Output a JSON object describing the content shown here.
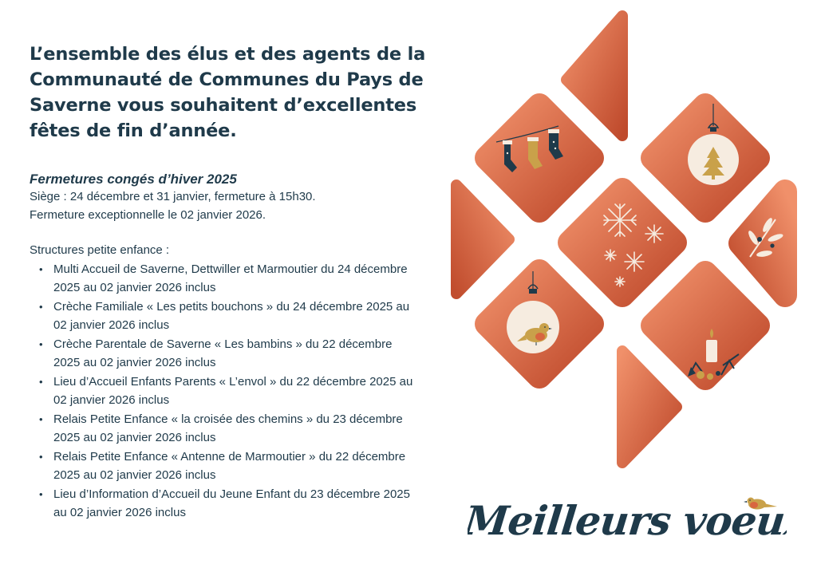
{
  "headline": "L’ensemble des élus et des agents de la Communauté de Communes du Pays de Saverne vous souhaitent d’excellentes fêtes de fin d’année.",
  "closures": {
    "title": "Fermetures congés d’hiver 2025",
    "lines": [
      "Siège : 24 décembre et 31 janvier, fermeture à 15h30.",
      "Fermeture exceptionnelle le 02 janvier 2026."
    ]
  },
  "structures": {
    "heading": "Structures petite enfance :",
    "items": [
      "Multi Accueil de Saverne, Dettwiller et Marmoutier du 24 décembre 2025 au 02 janvier 2026 inclus",
      " Crèche Familiale « Les petits bouchons » du 24 décembre 2025 au 02 janvier 2026 inclus",
      " Crèche Parentale de Saverne « Les bambins » du 22 décembre 2025 au 02 janvier 2026 inclus",
      " Lieu d’Accueil Enfants Parents « L’envol » du 22 décembre 2025 au 02 janvier 2026 inclus",
      "Relais Petite Enfance « la croisée des chemins » du 23 décembre 2025 au 02 janvier 2026 inclus",
      "Relais Petite Enfance « Antenne de Marmoutier » du 22 décembre 2025 au 02 janvier 2026 inclus",
      "Lieu d’Information d’Accueil du Jeune Enfant du 23 décembre 2025 au 02 janvier 2026 inclus"
    ]
  },
  "greeting": "Meilleurs voeux",
  "colors": {
    "text": "#1f3a4a",
    "tile_light": "#f0906a",
    "tile_dark": "#bf4a2c",
    "cream": "#f6ece0",
    "gold": "#c9a14a"
  },
  "icons": [
    "stockings-icon",
    "ornament-tree-icon",
    "snowflakes-icon",
    "leaf-branch-icon",
    "ornament-bird-icon",
    "candle-icon",
    "robin-icon"
  ]
}
